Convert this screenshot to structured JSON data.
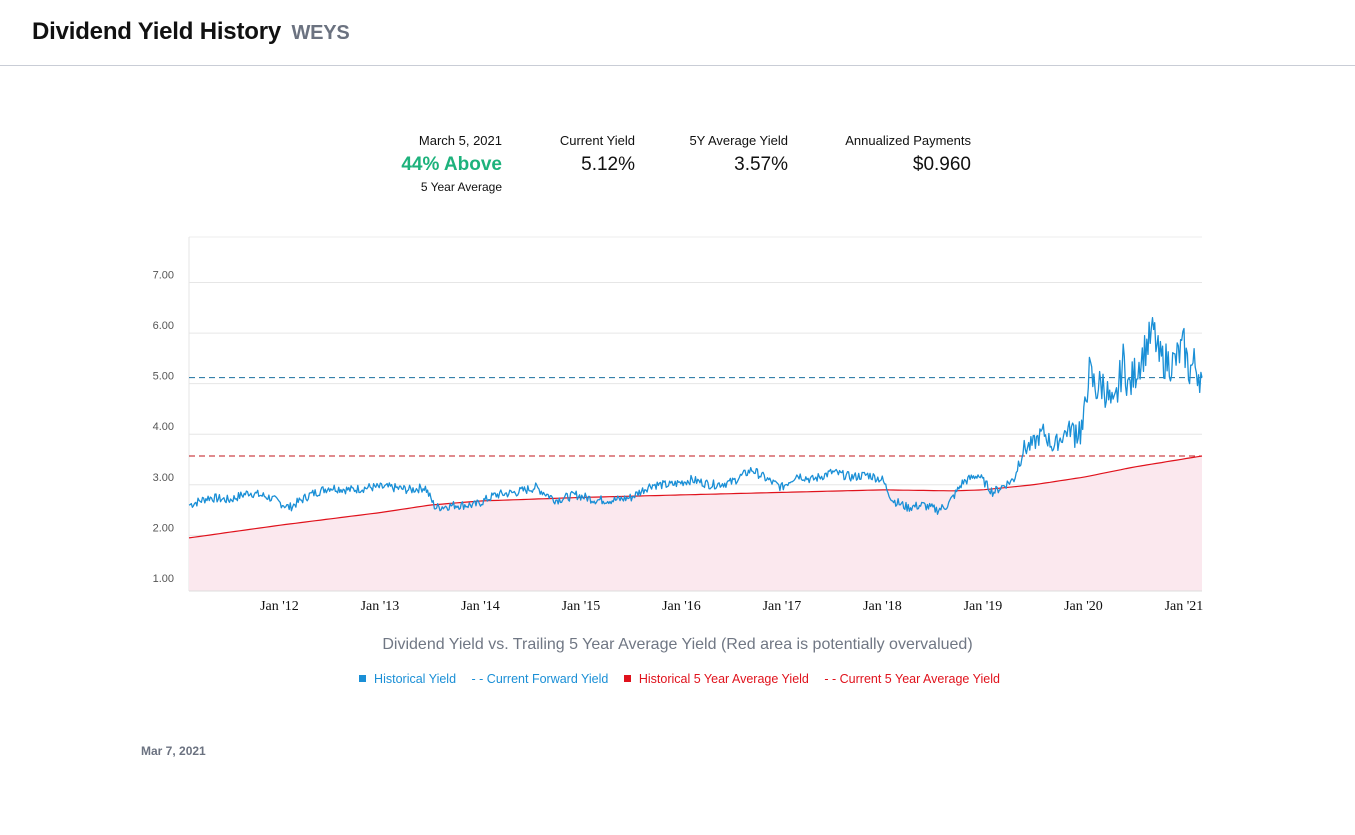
{
  "header": {
    "title": "Dividend Yield History",
    "ticker": "WEYS"
  },
  "stats": {
    "date": "March 5, 2021",
    "vs_average": "44% Above",
    "vs_average_sub": "5 Year Average",
    "current_yield_label": "Current Yield",
    "current_yield": "5.12%",
    "avg_yield_label": "5Y Average Yield",
    "avg_yield": "3.57%",
    "payments_label": "Annualized Payments",
    "payments": "$0.960"
  },
  "colors": {
    "historical": "#1a8fd6",
    "average": "#e0121c",
    "overvalued_fill": "#fbe8ee",
    "positive": "#1db27c"
  },
  "chart_data": {
    "type": "line",
    "title": "",
    "caption": "Dividend Yield vs. Trailing 5 Year Average Yield (Red area is potentially overvalued)",
    "xlabel": "",
    "ylabel": "",
    "x_range": [
      2011.1,
      2021.18
    ],
    "ylim": [
      0.9,
      7.9
    ],
    "y_ticks": [
      "1.00",
      "2.00",
      "3.00",
      "4.00",
      "5.00",
      "6.00",
      "7.00"
    ],
    "x_ticks": [
      {
        "x": 2012.0,
        "label": "Jan '12"
      },
      {
        "x": 2013.0,
        "label": "Jan '13"
      },
      {
        "x": 2014.0,
        "label": "Jan '14"
      },
      {
        "x": 2015.0,
        "label": "Jan '15"
      },
      {
        "x": 2016.0,
        "label": "Jan '16"
      },
      {
        "x": 2017.0,
        "label": "Jan '17"
      },
      {
        "x": 2018.0,
        "label": "Jan '18"
      },
      {
        "x": 2019.0,
        "label": "Jan '19"
      },
      {
        "x": 2020.0,
        "label": "Jan '20"
      },
      {
        "x": 2021.0,
        "label": "Jan '21"
      }
    ],
    "current_forward_yield": 5.12,
    "current_5y_average_yield": 3.57,
    "series": [
      {
        "name": "Historical Yield",
        "x": [
          2011.1,
          2011.3,
          2011.5,
          2011.7,
          2011.9,
          2012.1,
          2012.3,
          2012.5,
          2012.7,
          2012.9,
          2013.1,
          2013.3,
          2013.45,
          2013.55,
          2013.75,
          2013.95,
          2014.15,
          2014.35,
          2014.55,
          2014.75,
          2014.95,
          2015.15,
          2015.35,
          2015.5,
          2015.7,
          2015.9,
          2016.1,
          2016.3,
          2016.5,
          2016.7,
          2016.9,
          2017.0,
          2017.15,
          2017.3,
          2017.5,
          2017.7,
          2017.85,
          2018.0,
          2018.1,
          2018.25,
          2018.4,
          2018.55,
          2018.65,
          2018.8,
          2018.95,
          2019.1,
          2019.3,
          2019.4,
          2019.5,
          2019.6,
          2019.7,
          2019.85,
          2020.0,
          2020.05,
          2020.12,
          2020.2,
          2020.3,
          2020.4,
          2020.45,
          2020.55,
          2020.7,
          2020.75,
          2020.9,
          2021.0,
          2021.05,
          2021.1,
          2021.18
        ],
        "y": [
          2.6,
          2.75,
          2.7,
          2.85,
          2.75,
          2.55,
          2.8,
          2.95,
          2.9,
          2.95,
          2.95,
          2.9,
          2.95,
          2.55,
          2.6,
          2.6,
          2.8,
          2.85,
          2.95,
          2.7,
          2.8,
          2.7,
          2.7,
          2.75,
          3.0,
          3.0,
          3.1,
          3.0,
          3.05,
          3.3,
          3.05,
          2.95,
          3.2,
          3.1,
          3.25,
          3.15,
          3.2,
          3.1,
          2.7,
          2.55,
          2.6,
          2.5,
          2.6,
          3.05,
          3.2,
          2.85,
          3.1,
          3.7,
          3.8,
          4.05,
          3.75,
          4.1,
          4.1,
          5.25,
          4.9,
          5.0,
          4.4,
          5.5,
          4.9,
          5.4,
          6.05,
          5.5,
          5.4,
          5.75,
          5.25,
          5.4,
          5.12
        ]
      },
      {
        "name": "Historical 5 Year Average Yield",
        "x": [
          2011.1,
          2012.0,
          2013.0,
          2013.5,
          2014.0,
          2015.0,
          2016.0,
          2017.0,
          2018.0,
          2018.7,
          2019.0,
          2019.5,
          2020.0,
          2020.5,
          2021.18
        ],
        "y": [
          1.95,
          2.2,
          2.45,
          2.6,
          2.68,
          2.75,
          2.8,
          2.85,
          2.9,
          2.88,
          2.9,
          3.0,
          3.15,
          3.35,
          3.57
        ]
      }
    ]
  },
  "legend": {
    "historical": "Historical Yield",
    "current_forward": "- - Current Forward Yield",
    "historical_avg": "Historical 5 Year Average Yield",
    "current_avg": "- - Current 5 Year Average Yield"
  },
  "footer": {
    "date": "Mar 7, 2021"
  }
}
